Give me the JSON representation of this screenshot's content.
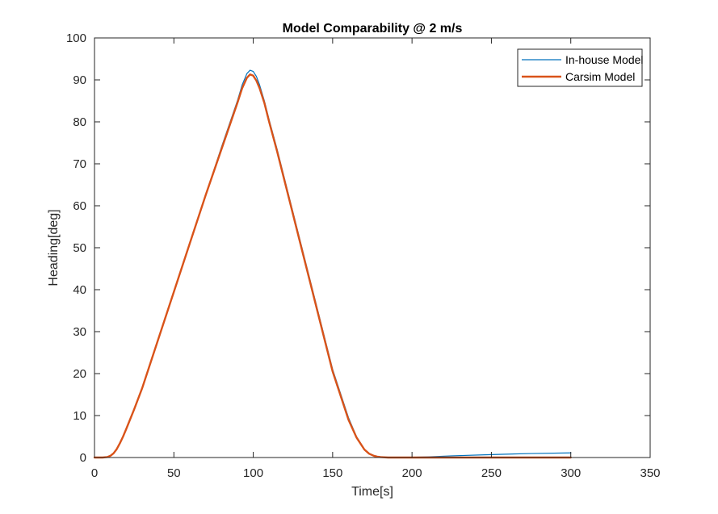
{
  "chart_data": {
    "type": "line",
    "title": "Model Comparability @ 2 m/s",
    "xlabel": "Time[s]",
    "ylabel": "Heading[deg]",
    "xlim": [
      0,
      350
    ],
    "ylim": [
      0,
      100
    ],
    "xticks": [
      0,
      50,
      100,
      150,
      200,
      250,
      300,
      350
    ],
    "yticks": [
      0,
      10,
      20,
      30,
      40,
      50,
      60,
      70,
      80,
      90,
      100
    ],
    "grid": false,
    "legend_position": "top-right",
    "series": [
      {
        "name": "In-house Model",
        "color": "#0072BD",
        "x": [
          0,
          5,
          8,
          10,
          12,
          14,
          16,
          18,
          20,
          25,
          30,
          40,
          50,
          60,
          70,
          80,
          85,
          90,
          93,
          96,
          98,
          100,
          102,
          104,
          107,
          110,
          115,
          120,
          130,
          140,
          150,
          160,
          165,
          170,
          173,
          176,
          178,
          180,
          182,
          185,
          190,
          195,
          200,
          210,
          225,
          250,
          275,
          300
        ],
        "y": [
          0,
          0,
          0.1,
          0.4,
          1.0,
          2.0,
          3.4,
          5.0,
          6.8,
          11.5,
          16.5,
          28.0,
          39.5,
          51.0,
          62.5,
          74.0,
          79.5,
          85.0,
          88.8,
          91.5,
          92.3,
          92.0,
          90.8,
          88.8,
          85.0,
          80.5,
          73.5,
          66.0,
          51.0,
          36.0,
          21.0,
          9.5,
          5.0,
          2.0,
          1.0,
          0.5,
          0.3,
          0.2,
          0.1,
          0.05,
          0,
          0,
          0.05,
          0.15,
          0.4,
          0.7,
          0.95,
          1.1
        ]
      },
      {
        "name": "Carsim Model",
        "color": "#D95319",
        "x": [
          0,
          5,
          8,
          10,
          12,
          14,
          16,
          18,
          20,
          25,
          30,
          40,
          50,
          60,
          70,
          80,
          85,
          90,
          93,
          96,
          98,
          100,
          102,
          104,
          107,
          110,
          115,
          120,
          130,
          140,
          150,
          160,
          165,
          170,
          173,
          176,
          178,
          180,
          182,
          185,
          190,
          195,
          200,
          210,
          225,
          250,
          275,
          300
        ],
        "y": [
          0,
          0,
          0.1,
          0.4,
          1.0,
          2.0,
          3.4,
          5.0,
          6.8,
          11.5,
          16.5,
          28.0,
          39.5,
          51.0,
          62.5,
          73.5,
          79.0,
          84.5,
          88.0,
          90.5,
          91.3,
          91.0,
          89.8,
          88.0,
          84.5,
          80.0,
          73.0,
          65.5,
          50.5,
          35.5,
          20.5,
          9.0,
          4.8,
          1.9,
          0.9,
          0.4,
          0.2,
          0.1,
          0.05,
          0,
          0,
          0,
          0,
          0,
          0,
          0,
          0,
          0
        ]
      }
    ]
  }
}
